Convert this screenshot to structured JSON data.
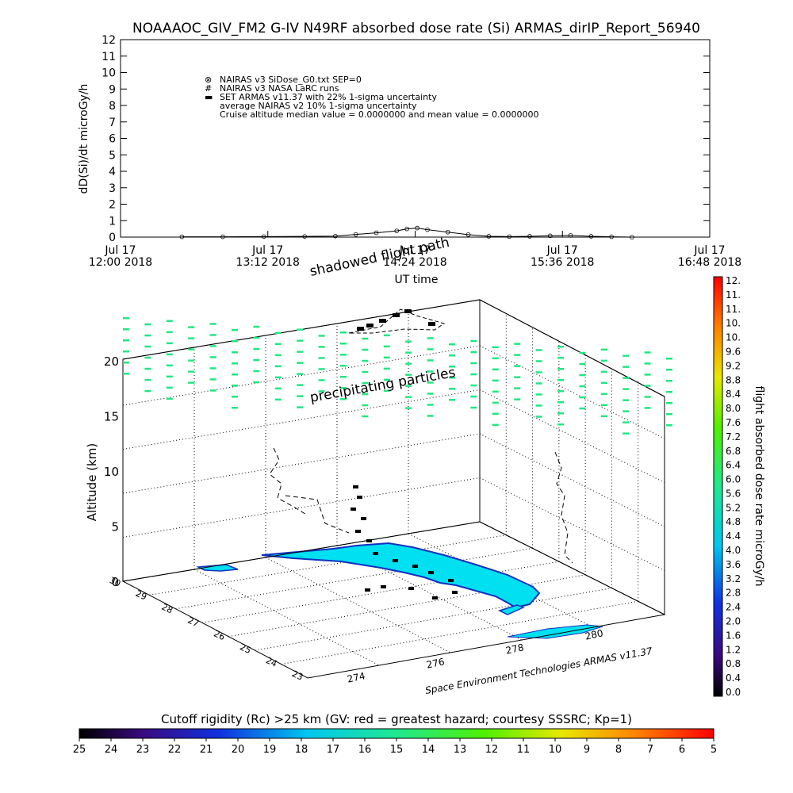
{
  "title": "NOAAAOC_GIV_FM2 G-IV   N49RF  absorbed dose rate (Si) ARMAS_dirIP_Report_56940",
  "top_chart": {
    "ylabel": "dD(Si)/dt microGy/h",
    "xlabel": "UT time",
    "y_ticks": [
      "0",
      "1",
      "2",
      "3",
      "4",
      "5",
      "6",
      "7",
      "8",
      "9",
      "10",
      "11",
      "12"
    ],
    "x_ticks": [
      {
        "line1": "Jul 17",
        "line2": "12:00 2018"
      },
      {
        "line1": "Jul 17",
        "line2": "13:12 2018"
      },
      {
        "line1": "Jul 17",
        "line2": "14:24 2018"
      },
      {
        "line1": "Jul 17",
        "line2": "15:36 2018"
      },
      {
        "line1": "Jul 17",
        "line2": "16:48 2018"
      }
    ],
    "legend": [
      {
        "marker": "⊗",
        "text": "NAIRAS v3 SiDose_G0.txt SEP=0"
      },
      {
        "marker": "#",
        "text": "NAIRAS v3 NASA LaRC runs"
      },
      {
        "marker": "▬",
        "text": "SET ARMAS v11.37 with 22% 1-sigma uncertainty",
        "color": "#1040e0"
      },
      {
        "marker": "",
        "text": "average NAIRAS v2 10% 1-sigma uncertainty"
      },
      {
        "marker": "",
        "text": "Cruise altitude median value = 0.0000000 and mean value = 0.0000000"
      }
    ]
  },
  "chart_data": {
    "type": "line",
    "title": "NOAAAOC_GIV_FM2 G-IV   N49RF  absorbed dose rate (Si) ARMAS_dirIP_Report_56940",
    "xlabel": "UT time",
    "ylabel": "dD(Si)/dt microGy/h",
    "x_range": [
      "2018-07-17 12:00",
      "2018-07-17 16:48"
    ],
    "ylim": [
      0,
      12
    ],
    "series": [
      {
        "name": "NAIRAS v3 SiDose_G0.txt SEP=0",
        "x": [
          "12:30",
          "12:50",
          "13:10",
          "13:30",
          "13:45",
          "13:55",
          "14:05",
          "14:15",
          "14:20",
          "14:25",
          "14:30",
          "14:40",
          "14:50",
          "15:00",
          "15:10",
          "15:20",
          "15:30",
          "15:40",
          "15:50",
          "16:00",
          "16:10"
        ],
        "values": [
          0.02,
          0.02,
          0.03,
          0.04,
          0.06,
          0.16,
          0.26,
          0.38,
          0.5,
          0.55,
          0.45,
          0.3,
          0.15,
          0.05,
          0.03,
          0.05,
          0.08,
          0.1,
          0.05,
          0.02,
          0.0
        ]
      }
    ]
  },
  "scene3d": {
    "label_shadowed": "shadowed flight path",
    "label_precip": "precipitating particles",
    "z_label": "Altitude (km)",
    "z_ticks": [
      "0",
      "5",
      "10",
      "15",
      "20"
    ],
    "lat_ticks": [
      "30",
      "29",
      "28",
      "27",
      "26",
      "25",
      "24",
      "23"
    ],
    "lon_ticks": [
      "274",
      "276",
      "278",
      "280"
    ],
    "credit": "Space Environment Technologies ARMAS v11.37"
  },
  "dose_colorbar": {
    "label": "flight absorbed dose rate microGy/h",
    "ticks": [
      "12.",
      "11.",
      "11.",
      "10.",
      "10.",
      "9.6",
      "9.2",
      "8.8",
      "8.4",
      "8.0",
      "7.6",
      "7.2",
      "6.8",
      "6.4",
      "6.0",
      "5.6",
      "5.2",
      "4.8",
      "4.4",
      "4.0",
      "3.6",
      "3.2",
      "2.8",
      "2.4",
      "2.0",
      "1.6",
      "1.2",
      "0.8",
      "0.4",
      "0.0"
    ]
  },
  "rigidity_colorbar": {
    "label": "Cutoff rigidity (Rc) >25 km (GV: red = greatest hazard; courtesy SSSRC; Kp=1)",
    "ticks": [
      "25",
      "24",
      "23",
      "22",
      "21",
      "20",
      "19",
      "18",
      "17",
      "16",
      "15",
      "14",
      "13",
      "12",
      "11",
      "10",
      "9",
      "8",
      "7",
      "6",
      "5"
    ]
  },
  "colors": {
    "land": "#00e0f0",
    "coast": "#1030c0",
    "particles": "#20e880",
    "frame": "#000000"
  }
}
